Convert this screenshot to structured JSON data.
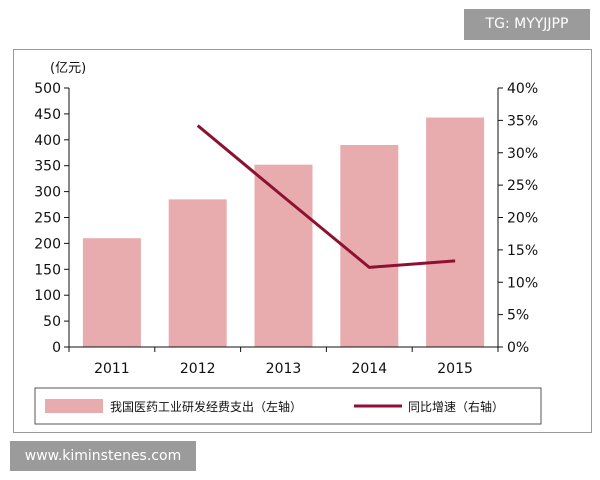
{
  "watermarks": {
    "top": "TG: MYYJJPP",
    "bottom": "www.kiminstenes.com"
  },
  "chart_data": {
    "type": "bar",
    "categories": [
      "2011",
      "2012",
      "2013",
      "2014",
      "2015"
    ],
    "series": [
      {
        "name": "我国医药工业研发经费支出（左轴）",
        "type": "bar",
        "axis": "left",
        "values": [
          210,
          285,
          352,
          390,
          443
        ]
      },
      {
        "name": "同比增速（右轴）",
        "type": "line",
        "axis": "right",
        "values": [
          null,
          34.2,
          23.2,
          12.3,
          13.3
        ]
      }
    ],
    "left_axis": {
      "unit_label": "(亿元)",
      "min": 0,
      "max": 500,
      "step": 50,
      "ticks": [
        "0",
        "50",
        "100",
        "150",
        "200",
        "250",
        "300",
        "350",
        "400",
        "450",
        "500"
      ]
    },
    "right_axis": {
      "min": 0,
      "max": 40,
      "step": 5,
      "ticks": [
        "0%",
        "5%",
        "10%",
        "15%",
        "20%",
        "25%",
        "30%",
        "35%",
        "40%"
      ]
    },
    "colors": {
      "bar": "#E8ACAE",
      "line": "#8E1131",
      "axis": "#111111",
      "frame": "#9a9a9a"
    },
    "grid": false,
    "legend_position": "bottom"
  }
}
